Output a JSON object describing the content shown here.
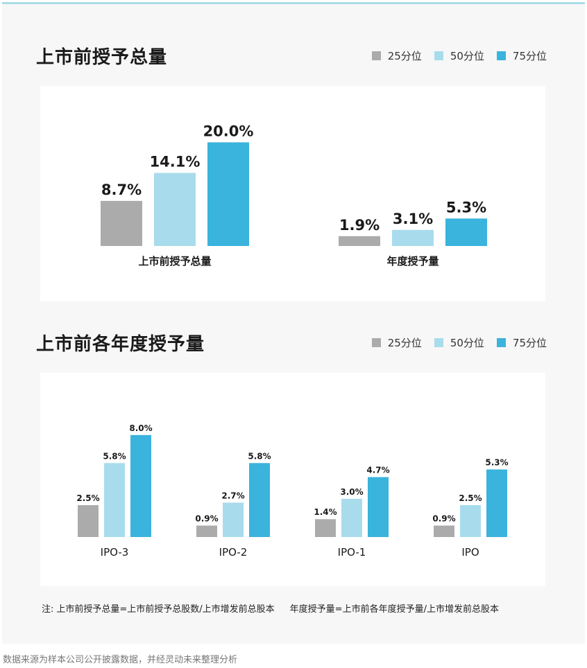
{
  "legend": [
    "25分位",
    "50分位",
    "75分位"
  ],
  "colors": {
    "p25": "#ababab",
    "p50": "#a8dcec",
    "p75": "#3ab3dd",
    "accent": "#a9dde9"
  },
  "section1": {
    "title": "上市前授予总量"
  },
  "section2": {
    "title": "上市前各年度授予量"
  },
  "chart_data": [
    {
      "type": "bar",
      "title": "上市前授予总量",
      "categories": [
        "上市前授予总量",
        "年度授予量"
      ],
      "series": [
        {
          "name": "25分位",
          "values": [
            8.7,
            1.9
          ]
        },
        {
          "name": "50分位",
          "values": [
            14.1,
            3.1
          ]
        },
        {
          "name": "75分位",
          "values": [
            20.0,
            5.3
          ]
        }
      ],
      "unit": "%",
      "legend_position": "top-right"
    },
    {
      "type": "bar",
      "title": "上市前各年度授予量",
      "categories": [
        "IPO-3",
        "IPO-2",
        "IPO-1",
        "IPO"
      ],
      "series": [
        {
          "name": "25分位",
          "values": [
            2.5,
            0.9,
            1.4,
            0.9
          ]
        },
        {
          "name": "50分位",
          "values": [
            5.8,
            2.7,
            3.0,
            2.5
          ]
        },
        {
          "name": "75分位",
          "values": [
            8.0,
            5.8,
            4.7,
            5.3
          ]
        }
      ],
      "unit": "%",
      "legend_position": "top-right"
    }
  ],
  "note": {
    "prefix": "注:",
    "formula1": "上市前授予总量=上市前授予总股数/上市增发前总股本",
    "formula2": "年度授予量=上市前各年度授予量/上市增发前总股本"
  },
  "source": "数据来源为样本公司公开披露数据，并经灵动未来整理分析"
}
